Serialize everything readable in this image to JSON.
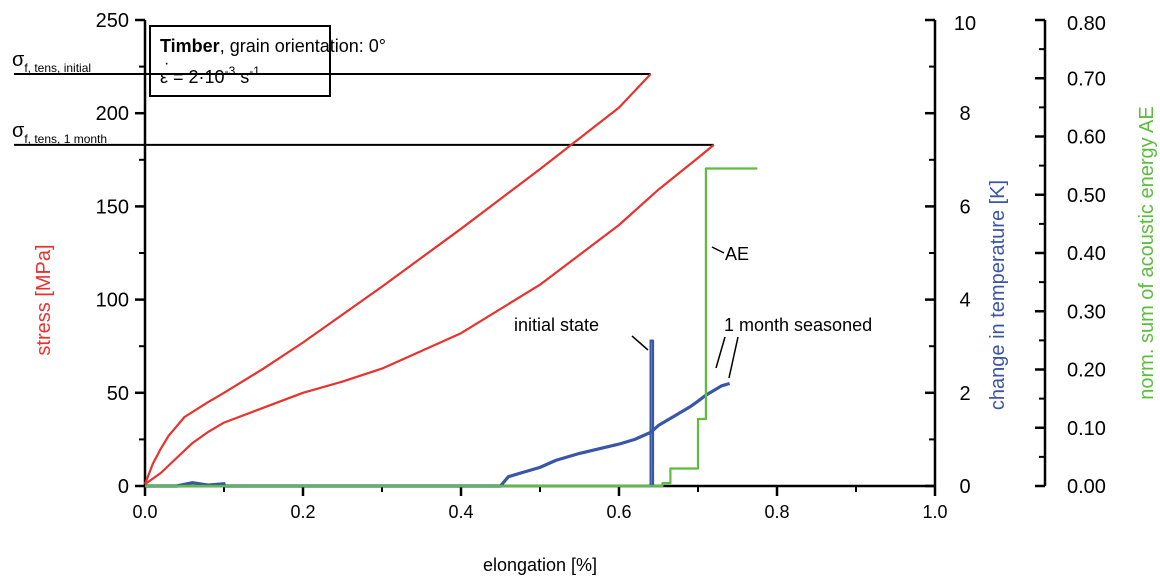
{
  "chart_data": {
    "type": "line",
    "xlabel": "elongation  [%]",
    "xlim": [
      0,
      1
    ],
    "x_ticks": [
      "0.0",
      "0.2",
      "0.4",
      "0.6",
      "0.8",
      "1.0"
    ],
    "y_axes": {
      "stress": {
        "label": "stress [MPa]",
        "lim": [
          0,
          250
        ],
        "ticks": [
          "0",
          "50",
          "100",
          "150",
          "200",
          "250"
        ],
        "color": "#e8322d"
      },
      "temperature": {
        "label": "change in temperature [K]",
        "lim": [
          0,
          10
        ],
        "ticks": [
          "0",
          "2",
          "4",
          "6",
          "8",
          "10"
        ],
        "color": "#3a56a8"
      },
      "ae": {
        "label": "norm. sum of acoustic energy AE",
        "lim": [
          0,
          0.8
        ],
        "ticks": [
          "0.00",
          "0.10",
          "0.20",
          "0.30",
          "0.40",
          "0.50",
          "0.60",
          "0.70",
          "0.80"
        ],
        "color": "#5cbd3e"
      }
    },
    "info_box": {
      "material": "Timber",
      "orientation": ", grain orientation: 0°",
      "rate_prefix": "ε = 2·10",
      "rate_exp": "-3",
      "rate_unit": " s",
      "rate_unit_exp": "-1"
    },
    "reference_lines": [
      {
        "sigma": "σ",
        "sub": "f, tens, initial",
        "y": 221,
        "x_end": 0.64
      },
      {
        "sigma": "σ",
        "sub": "f, tens, 1 month",
        "y": 183,
        "x_end": 0.72
      }
    ],
    "annotations": {
      "initial": "initial state",
      "seasoned": "1 month seasoned",
      "ae": "AE"
    },
    "series": [
      {
        "key": "stress_initial",
        "axis": "stress",
        "color": "#e8322d",
        "x": [
          0,
          0.01,
          0.02,
          0.03,
          0.05,
          0.08,
          0.1,
          0.15,
          0.2,
          0.3,
          0.4,
          0.5,
          0.6,
          0.64
        ],
        "y": [
          1,
          12,
          20,
          27,
          37,
          45,
          50,
          63,
          77,
          107,
          138,
          170,
          203,
          221
        ]
      },
      {
        "key": "stress_seasoned",
        "axis": "stress",
        "color": "#e8322d",
        "x": [
          0,
          0.02,
          0.04,
          0.06,
          0.08,
          0.1,
          0.15,
          0.2,
          0.25,
          0.3,
          0.4,
          0.5,
          0.6,
          0.65,
          0.7,
          0.72
        ],
        "y": [
          1,
          7,
          15,
          23,
          29,
          34,
          42,
          50,
          56,
          63,
          82,
          108,
          140,
          159,
          176,
          183
        ]
      },
      {
        "key": "temperature",
        "axis": "temperature",
        "color": "#3a56a8",
        "x": [
          0,
          0.04,
          0.06,
          0.08,
          0.1,
          0.1,
          0.45,
          0.46,
          0.48,
          0.5,
          0.52,
          0.55,
          0.58,
          0.6,
          0.62,
          0.64,
          0.65,
          0.67,
          0.69,
          0.7,
          0.71,
          0.72,
          0.73,
          0.74
        ],
        "y": [
          0,
          0,
          0.07,
          0.02,
          0.05,
          0,
          0,
          0.2,
          0.3,
          0.4,
          0.55,
          0.7,
          0.82,
          0.9,
          1.0,
          1.15,
          1.3,
          1.5,
          1.7,
          1.82,
          1.95,
          2.05,
          2.15,
          2.2
        ]
      },
      {
        "key": "temperature_spike",
        "axis": "temperature",
        "color": "#3a56a8",
        "x": [
          0.64,
          0.64,
          0.643,
          0.643
        ],
        "y": [
          0,
          3.12,
          3.12,
          0
        ]
      },
      {
        "key": "ae",
        "axis": "ae",
        "color": "#5cbd3e",
        "x": [
          0,
          0.655,
          0.655,
          0.665,
          0.665,
          0.7,
          0.7,
          0.71,
          0.71,
          0.775
        ],
        "y": [
          0,
          0,
          0.005,
          0.005,
          0.03,
          0.03,
          0.115,
          0.115,
          0.545,
          0.545
        ]
      }
    ]
  }
}
